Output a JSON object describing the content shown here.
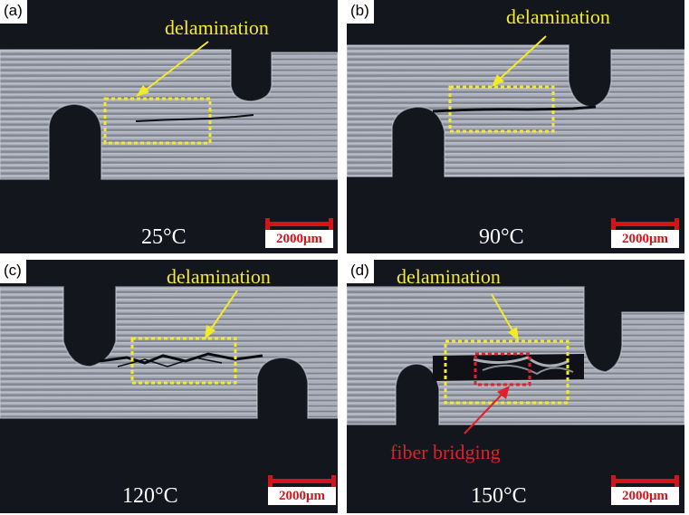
{
  "panels": [
    {
      "label": "(a)",
      "temperature": "25°C",
      "scale": "2000μm",
      "annotation": "delamination"
    },
    {
      "label": "(b)",
      "temperature": "90°C",
      "scale": "2000μm",
      "annotation": "delamination"
    },
    {
      "label": "(c)",
      "temperature": "120°C",
      "scale": "2000μm",
      "annotation": "delamination"
    },
    {
      "label": "(d)",
      "temperature": "150°C",
      "scale": "2000μm",
      "annotation": "delamination",
      "annotation2": "fiber bridging"
    }
  ],
  "colors": {
    "annotation_yellow": "#f4ea2a",
    "annotation_red": "#e0202a",
    "scalebar_red": "#d4141a",
    "background": "#14161d",
    "specimen": "#9aa0ad"
  }
}
